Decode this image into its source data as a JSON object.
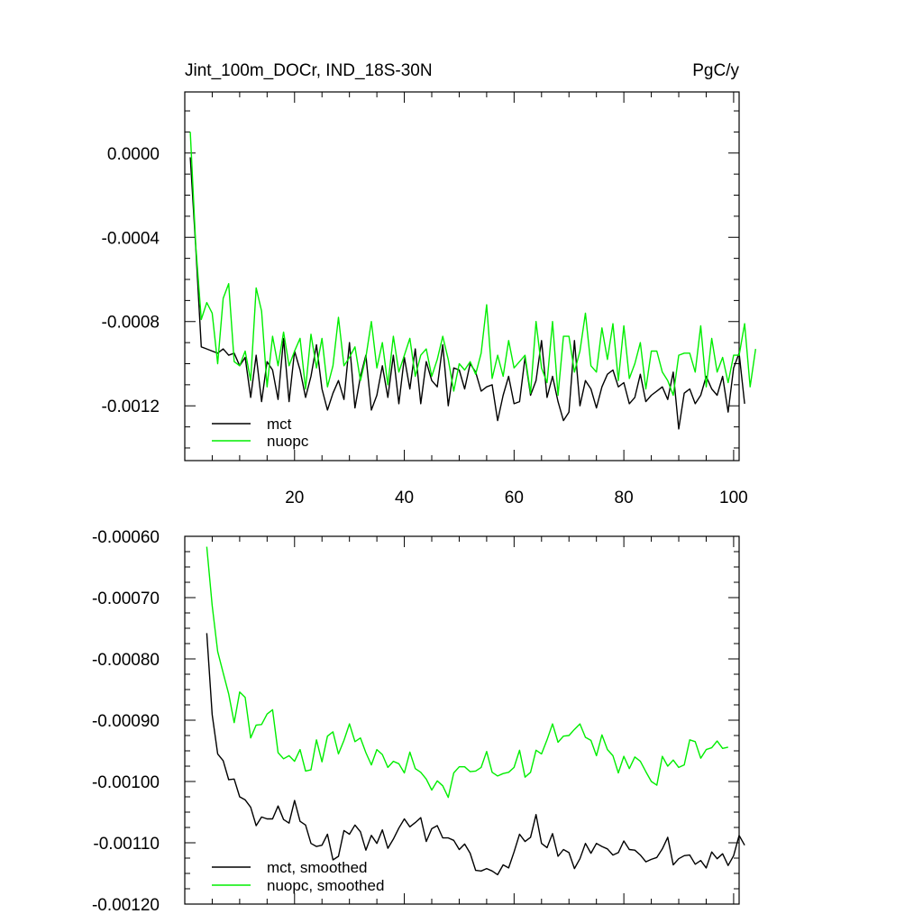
{
  "chart_data": [
    {
      "type": "line",
      "title": "Jint_100m_DOCr, IND_18S-30N",
      "units": "PgC/y",
      "xlim": [
        0,
        101
      ],
      "ylim": [
        -0.00146,
        0.00029
      ],
      "xticks": [
        20,
        40,
        60,
        80,
        100
      ],
      "xtick_labels": [
        "20",
        "40",
        "60",
        "80",
        "100"
      ],
      "yticks": [
        0.0,
        -0.0004,
        -0.0008,
        -0.0012
      ],
      "ytick_labels": [
        "0.0000",
        "-0.0004",
        "-0.0008",
        "-0.0012"
      ],
      "legend": [
        "mct",
        "nuopc"
      ],
      "legend_location": "bottom-left",
      "colors": {
        "mct": "#000000",
        "nuopc": "#00ee00"
      },
      "x_start": 1,
      "series": [
        {
          "name": "mct",
          "color": "#000000",
          "values": [
            -2e-05,
            -0.00045,
            -0.00092,
            -0.00093,
            -0.00094,
            -0.00095,
            -0.00093,
            -0.00096,
            -0.00095,
            -0.00101,
            -0.00097,
            -0.00116,
            -0.00096,
            -0.00118,
            -0.00099,
            -0.00103,
            -0.00117,
            -0.00088,
            -0.00118,
            -0.00094,
            -0.00103,
            -0.00116,
            -0.00106,
            -0.00091,
            -0.00112,
            -0.00122,
            -0.00114,
            -0.00108,
            -0.00117,
            -0.0009,
            -0.00121,
            -0.00106,
            -0.00096,
            -0.00122,
            -0.00115,
            -0.00101,
            -0.00116,
            -0.00096,
            -0.00119,
            -0.00097,
            -0.00112,
            -0.00093,
            -0.00119,
            -0.00099,
            -0.00108,
            -0.00111,
            -0.00091,
            -0.0012,
            -0.00102,
            -0.00103,
            -0.00112,
            -0.001,
            -0.00104,
            -0.00113,
            -0.00111,
            -0.0011,
            -0.00127,
            -0.00115,
            -0.00106,
            -0.00119,
            -0.00118,
            -0.00097,
            -0.00115,
            -0.00108,
            -0.00089,
            -0.00116,
            -0.00106,
            -0.00118,
            -0.00127,
            -0.00123,
            -0.00089,
            -0.0012,
            -0.00108,
            -0.00112,
            -0.00121,
            -0.00111,
            -0.00105,
            -0.00103,
            -0.00111,
            -0.00109,
            -0.00119,
            -0.00116,
            -0.00105,
            -0.00118,
            -0.00115,
            -0.00113,
            -0.00111,
            -0.00117,
            -0.00104,
            -0.00131,
            -0.00114,
            -0.00112,
            -0.00119,
            -0.00115,
            -0.00106,
            -0.00112,
            -0.00115,
            -0.00106,
            -0.00123,
            -0.00102,
            -0.00095,
            -0.00119
          ]
        },
        {
          "name": "nuopc",
          "color": "#00ee00",
          "values": [
            0.0001,
            -0.00044,
            -0.00079,
            -0.00071,
            -0.00076,
            -0.001,
            -0.00069,
            -0.00062,
            -0.00099,
            -0.00101,
            -0.00094,
            -0.00108,
            -0.00064,
            -0.00075,
            -0.00111,
            -0.00087,
            -0.00101,
            -0.00085,
            -0.00101,
            -0.00094,
            -0.00088,
            -0.00112,
            -0.00086,
            -0.00102,
            -0.00088,
            -0.00111,
            -0.00101,
            -0.00078,
            -0.00101,
            -0.00097,
            -0.00092,
            -0.00108,
            -0.00097,
            -0.0008,
            -0.00102,
            -0.0009,
            -0.0011,
            -0.00087,
            -0.00104,
            -0.00096,
            -0.00088,
            -0.00106,
            -0.00096,
            -0.00093,
            -0.00106,
            -0.00098,
            -0.00087,
            -0.00098,
            -0.00113,
            -0.001,
            -0.00103,
            -0.00099,
            -0.00105,
            -0.00095,
            -0.00072,
            -0.00107,
            -0.00096,
            -0.00106,
            -0.00089,
            -0.00102,
            -0.00099,
            -0.00096,
            -0.00114,
            -0.0008,
            -0.00102,
            -0.00109,
            -0.0008,
            -0.00115,
            -0.00087,
            -0.00087,
            -0.00104,
            -0.00094,
            -0.00076,
            -0.00101,
            -0.00104,
            -0.00083,
            -0.00098,
            -0.00081,
            -0.00108,
            -0.00082,
            -0.00107,
            -0.001,
            -0.0009,
            -0.00112,
            -0.00094,
            -0.00094,
            -0.00104,
            -0.00108,
            -0.00115,
            -0.00096,
            -0.00095,
            -0.00095,
            -0.00104,
            -0.00082,
            -0.00111,
            -0.00088,
            -0.00104,
            -0.00097,
            -0.00109,
            -0.00096,
            -0.00096,
            -0.00081,
            -0.00111,
            -0.00093
          ]
        }
      ]
    },
    {
      "type": "line",
      "xlim": [
        0,
        101
      ],
      "ylim": [
        -0.0012,
        -0.0006
      ],
      "xticks": [
        20,
        40,
        60,
        80,
        100
      ],
      "yticks": [
        -0.0006,
        -0.0007,
        -0.0008,
        -0.0009,
        -0.001,
        -0.0011,
        -0.0012
      ],
      "ytick_labels": [
        "-0.00060",
        "-0.00070",
        "-0.00080",
        "-0.00090",
        "-0.00100",
        "-0.00110",
        "-0.00120"
      ],
      "legend": [
        "mct, smoothed",
        "nuopc, smoothed"
      ],
      "legend_location": "bottom-left",
      "colors": {
        "mct, smoothed": "#000000",
        "nuopc, smoothed": "#00ee00"
      },
      "x_start": 4,
      "series": [
        {
          "name": "mct, smoothed",
          "color": "#000000",
          "values": [
            -0.000758,
            -0.000891,
            -0.000955,
            -0.000966,
            -0.000997,
            -0.000996,
            -0.001025,
            -0.00103,
            -0.001042,
            -0.001072,
            -0.001058,
            -0.001061,
            -0.001061,
            -0.00104,
            -0.001062,
            -0.001068,
            -0.001031,
            -0.001065,
            -0.001071,
            -0.001101,
            -0.001106,
            -0.001104,
            -0.001086,
            -0.001128,
            -0.001122,
            -0.00108,
            -0.001086,
            -0.001071,
            -0.001082,
            -0.001112,
            -0.001088,
            -0.001101,
            -0.001079,
            -0.001109,
            -0.001094,
            -0.001076,
            -0.001061,
            -0.001074,
            -0.001067,
            -0.001059,
            -0.001098,
            -0.001077,
            -0.001072,
            -0.001092,
            -0.001092,
            -0.001096,
            -0.001111,
            -0.001102,
            -0.001117,
            -0.001145,
            -0.001146,
            -0.001142,
            -0.001146,
            -0.001152,
            -0.001136,
            -0.001141,
            -0.001115,
            -0.001086,
            -0.001098,
            -0.001091,
            -0.001054,
            -0.001101,
            -0.001108,
            -0.001085,
            -0.001122,
            -0.001111,
            -0.001116,
            -0.001142,
            -0.001126,
            -0.001101,
            -0.001117,
            -0.001101,
            -0.001106,
            -0.00111,
            -0.00112,
            -0.001116,
            -0.001097,
            -0.001111,
            -0.001112,
            -0.00112,
            -0.001131,
            -0.001127,
            -0.001124,
            -0.00111,
            -0.001091,
            -0.001136,
            -0.001126,
            -0.001121,
            -0.00112,
            -0.001135,
            -0.001129,
            -0.001141,
            -0.001115,
            -0.001126,
            -0.001118,
            -0.001137,
            -0.001121,
            -0.001088,
            -0.001104
          ]
        },
        {
          "name": "nuopc, smoothed",
          "color": "#00ee00",
          "values": [
            -0.000617,
            -0.000713,
            -0.000788,
            -0.000823,
            -0.000857,
            -0.000904,
            -0.000854,
            -0.000863,
            -0.000929,
            -0.000908,
            -0.000907,
            -0.00089,
            -0.000883,
            -0.000953,
            -0.000963,
            -0.000958,
            -0.000967,
            -0.000948,
            -0.000983,
            -0.000981,
            -0.000932,
            -0.000968,
            -0.000926,
            -0.000919,
            -0.000955,
            -0.000933,
            -0.000906,
            -0.000935,
            -0.000929,
            -0.000953,
            -0.000973,
            -0.000948,
            -0.000956,
            -0.000977,
            -0.000967,
            -0.000971,
            -0.000986,
            -0.000952,
            -0.000979,
            -0.000985,
            -0.000996,
            -0.001014,
            -0.000999,
            -0.001007,
            -0.001026,
            -0.000986,
            -0.000976,
            -0.000976,
            -0.000984,
            -0.000983,
            -0.000977,
            -0.000951,
            -0.000985,
            -0.000991,
            -0.000987,
            -0.000985,
            -0.000977,
            -0.000949,
            -0.000993,
            -0.000985,
            -0.000949,
            -0.000955,
            -0.000932,
            -0.000906,
            -0.000936,
            -0.000926,
            -0.000925,
            -0.000915,
            -0.000906,
            -0.000928,
            -0.000933,
            -0.000958,
            -0.000924,
            -0.000948,
            -0.000958,
            -0.000986,
            -0.000959,
            -0.000979,
            -0.00096,
            -0.000967,
            -0.000984,
            -0.001,
            -0.001006,
            -0.000959,
            -0.000975,
            -0.000965,
            -0.000977,
            -0.000973,
            -0.000932,
            -0.000935,
            -0.000962,
            -0.000948,
            -0.000945,
            -0.000934,
            -0.000946,
            -0.000944
          ]
        }
      ]
    }
  ]
}
